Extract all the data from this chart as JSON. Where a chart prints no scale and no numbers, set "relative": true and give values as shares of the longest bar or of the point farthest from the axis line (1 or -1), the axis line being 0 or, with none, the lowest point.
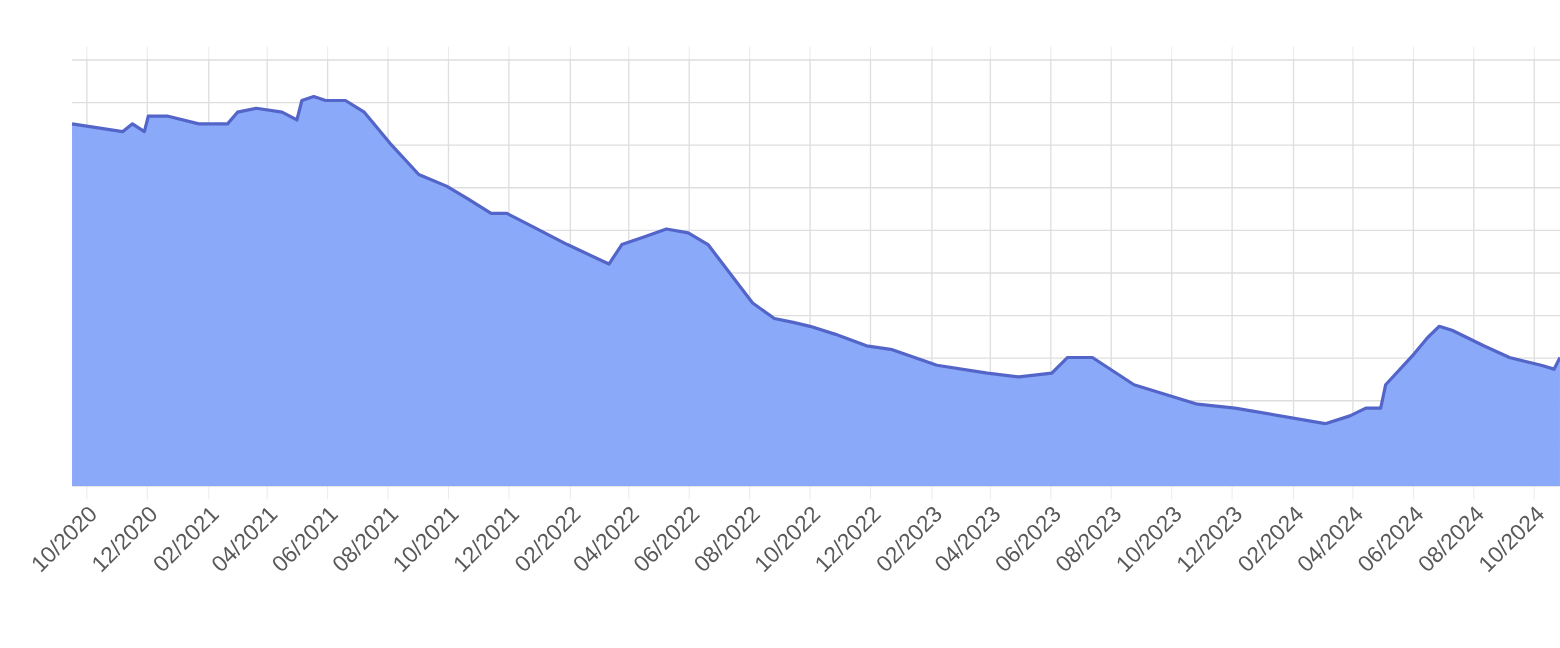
{
  "chart_data": {
    "type": "area",
    "relative": true,
    "grid": true,
    "color": "#8aa9f9",
    "x": [
      "2020-09-16",
      "2020-11-06",
      "2020-11-16",
      "2020-11-28",
      "2020-12-02",
      "2020-12-21",
      "2021-01-22",
      "2021-02-20",
      "2021-03-02",
      "2021-03-21",
      "2021-04-16",
      "2021-05-01",
      "2021-05-06",
      "2021-05-18",
      "2021-05-30",
      "2021-06-19",
      "2021-07-08",
      "2021-08-03",
      "2021-09-01",
      "2021-09-29",
      "2021-10-19",
      "2021-11-13",
      "2021-11-29",
      "2021-12-22",
      "2022-01-29",
      "2022-03-12",
      "2022-03-25",
      "2022-04-17",
      "2022-05-09",
      "2022-05-31",
      "2022-06-20",
      "2022-08-04",
      "2022-08-26",
      "2022-09-14",
      "2022-10-01",
      "2022-10-26",
      "2022-11-27",
      "2022-12-23",
      "2023-02-06",
      "2023-03-29",
      "2023-04-30",
      "2023-06-02",
      "2023-06-18",
      "2023-07-13",
      "2023-08-24",
      "2023-10-27",
      "2023-12-04",
      "2024-03-04",
      "2024-03-29",
      "2024-04-14",
      "2024-04-29",
      "2024-05-04",
      "2024-06-02",
      "2024-06-15",
      "2024-06-27",
      "2024-07-10",
      "2024-08-11",
      "2024-09-06",
      "2024-10-08",
      "2024-10-21",
      "2024-10-27"
    ],
    "values": [
      0.93,
      0.91,
      0.93,
      0.91,
      0.95,
      0.95,
      0.93,
      0.93,
      0.96,
      0.97,
      0.96,
      0.94,
      0.99,
      1,
      0.99,
      0.99,
      0.96,
      0.88,
      0.8,
      0.77,
      0.74,
      0.7,
      0.7,
      0.67,
      0.62,
      0.57,
      0.62,
      0.64,
      0.66,
      0.65,
      0.62,
      0.47,
      0.43,
      0.42,
      0.41,
      0.39,
      0.36,
      0.35,
      0.31,
      0.29,
      0.28,
      0.29,
      0.33,
      0.33,
      0.26,
      0.21,
      0.2,
      0.16,
      0.18,
      0.2,
      0.2,
      0.26,
      0.34,
      0.38,
      0.41,
      0.4,
      0.36,
      0.33,
      0.31,
      0.3,
      0.33
    ],
    "xlim": [
      "2020-09-16",
      "2024-10-27"
    ],
    "xticks": [
      {
        "value": "2020-10",
        "label": "10/2020"
      },
      {
        "value": "2020-12",
        "label": "12/2020"
      },
      {
        "value": "2021-02",
        "label": "02/2021"
      },
      {
        "value": "2021-04",
        "label": "04/2021"
      },
      {
        "value": "2021-06",
        "label": "06/2021"
      },
      {
        "value": "2021-08",
        "label": "08/2021"
      },
      {
        "value": "2021-10",
        "label": "10/2021"
      },
      {
        "value": "2021-12",
        "label": "12/2021"
      },
      {
        "value": "2022-02",
        "label": "02/2022"
      },
      {
        "value": "2022-04",
        "label": "04/2022"
      },
      {
        "value": "2022-06",
        "label": "06/2022"
      },
      {
        "value": "2022-08",
        "label": "08/2022"
      },
      {
        "value": "2022-10",
        "label": "10/2022"
      },
      {
        "value": "2022-12",
        "label": "12/2022"
      },
      {
        "value": "2023-02",
        "label": "02/2023"
      },
      {
        "value": "2023-04",
        "label": "04/2023"
      },
      {
        "value": "2023-06",
        "label": "06/2023"
      },
      {
        "value": "2023-08",
        "label": "08/2023"
      },
      {
        "value": "2023-10",
        "label": "10/2023"
      },
      {
        "value": "2023-12",
        "label": "12/2023"
      },
      {
        "value": "2024-02",
        "label": "02/2024"
      },
      {
        "value": "2024-04",
        "label": "04/2024"
      },
      {
        "value": "2024-06",
        "label": "06/2024"
      },
      {
        "value": "2024-08",
        "label": "08/2024"
      },
      {
        "value": "2024-10",
        "label": "10/2024"
      }
    ]
  }
}
